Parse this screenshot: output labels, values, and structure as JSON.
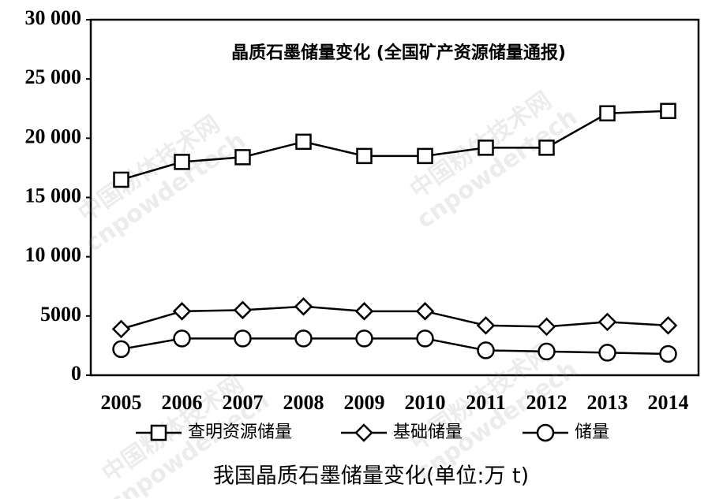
{
  "chart_data": {
    "type": "line",
    "title": "晶质石墨储量变化 (全国矿产资源储量通报)",
    "caption": "我国晶质石墨储量变化(单位:万 t)",
    "watermark": "中国粉体技术网",
    "watermark_url": "cnpowdertech",
    "categories": [
      "2005",
      "2006",
      "2007",
      "2008",
      "2009",
      "2010",
      "2011",
      "2012",
      "2013",
      "2014"
    ],
    "series": [
      {
        "name": "查明资源储量",
        "color": "#000000",
        "marker": "square",
        "values": [
          16500,
          18000,
          18400,
          19700,
          18500,
          18500,
          19200,
          19200,
          22100,
          22300
        ]
      },
      {
        "name": "基础储量",
        "color": "#000000",
        "marker": "diamond",
        "values": [
          3900,
          5400,
          5500,
          5800,
          5400,
          5400,
          4200,
          4100,
          4500,
          4200
        ]
      },
      {
        "name": "储量",
        "color": "#000000",
        "marker": "circle",
        "values": [
          2200,
          3100,
          3100,
          3100,
          3100,
          3100,
          2100,
          2000,
          1900,
          1800
        ]
      }
    ],
    "ylim": [
      0,
      30000
    ],
    "yticks": [
      0,
      5000,
      {
        "value": 10000,
        "label": "10 000"
      },
      {
        "value": 15000,
        "label": "15 000"
      },
      {
        "value": 20000,
        "label": "20 000"
      },
      {
        "value": 25000,
        "label": "25 000"
      },
      {
        "value": 30000,
        "label": "30 000"
      }
    ],
    "grid": false
  }
}
